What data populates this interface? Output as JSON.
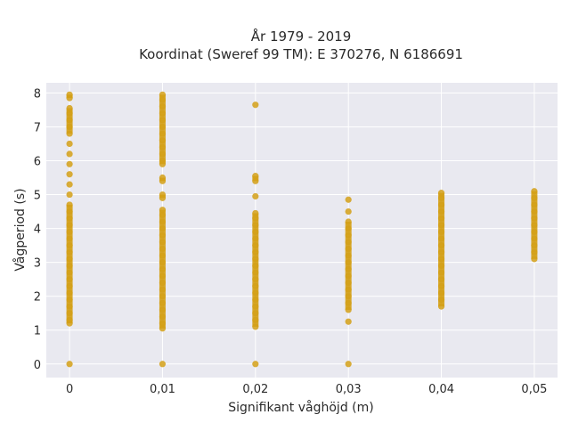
{
  "chart_data": {
    "type": "scatter",
    "title_line1": "År 1979 - 2019",
    "title_line2": "Koordinat (Sweref 99 TM): E 370276, N 6186691",
    "xlabel": "Signifikant våghöjd (m)",
    "ylabel": "Vågperiod (s)",
    "x_ticks": [
      {
        "value": 0,
        "label": "0"
      },
      {
        "value": 0.01,
        "label": "0,01"
      },
      {
        "value": 0.02,
        "label": "0,02"
      },
      {
        "value": 0.03,
        "label": "0,03"
      },
      {
        "value": 0.04,
        "label": "0,04"
      },
      {
        "value": 0.05,
        "label": "0,05"
      }
    ],
    "y_ticks": [
      {
        "value": 0,
        "label": "0"
      },
      {
        "value": 1,
        "label": "1"
      },
      {
        "value": 2,
        "label": "2"
      },
      {
        "value": 3,
        "label": "3"
      },
      {
        "value": 4,
        "label": "4"
      },
      {
        "value": 5,
        "label": "5"
      },
      {
        "value": 6,
        "label": "6"
      },
      {
        "value": 7,
        "label": "7"
      },
      {
        "value": 8,
        "label": "8"
      }
    ],
    "xlim": [
      -0.0025,
      0.0525
    ],
    "ylim": [
      -0.4,
      8.3
    ],
    "grid": true,
    "legend": "none",
    "marker_color": "#D4A017",
    "background_color": "#E9E9F0",
    "series": [
      {
        "points": [
          {
            "x": 0,
            "y": 0
          },
          {
            "x": 0,
            "y": 1.2
          },
          {
            "x": 0,
            "y": 1.3
          },
          {
            "x": 0,
            "y": 1.5
          },
          {
            "x": 0,
            "y": 1.7
          },
          {
            "x": 0,
            "y": 1.9
          },
          {
            "x": 0,
            "y": 2.1
          },
          {
            "x": 0,
            "y": 2.3
          },
          {
            "x": 0,
            "y": 2.5
          },
          {
            "x": 0,
            "y": 2.7
          },
          {
            "x": 0,
            "y": 2.9
          },
          {
            "x": 0,
            "y": 3.1
          },
          {
            "x": 0,
            "y": 3.3
          },
          {
            "x": 0,
            "y": 3.5
          },
          {
            "x": 0,
            "y": 3.7
          },
          {
            "x": 0,
            "y": 3.9
          },
          {
            "x": 0,
            "y": 4.1
          },
          {
            "x": 0,
            "y": 4.3
          },
          {
            "x": 0,
            "y": 4.5
          },
          {
            "x": 0,
            "y": 4.7
          },
          {
            "x": 0,
            "y": 5.0
          },
          {
            "x": 0,
            "y": 5.3
          },
          {
            "x": 0,
            "y": 5.6
          },
          {
            "x": 0,
            "y": 5.9
          },
          {
            "x": 0,
            "y": 6.2
          },
          {
            "x": 0,
            "y": 6.5
          },
          {
            "x": 0,
            "y": 6.8
          },
          {
            "x": 0,
            "y": 7.0
          },
          {
            "x": 0,
            "y": 7.2
          },
          {
            "x": 0,
            "y": 7.4
          },
          {
            "x": 0,
            "y": 7.55
          },
          {
            "x": 0,
            "y": 7.85
          },
          {
            "x": 0,
            "y": 7.95
          },
          {
            "x": 0.01,
            "y": 0
          },
          {
            "x": 0.01,
            "y": 1.05
          },
          {
            "x": 0.01,
            "y": 1.2
          },
          {
            "x": 0.01,
            "y": 1.4
          },
          {
            "x": 0.01,
            "y": 1.6
          },
          {
            "x": 0.01,
            "y": 1.8
          },
          {
            "x": 0.01,
            "y": 2.0
          },
          {
            "x": 0.01,
            "y": 2.2
          },
          {
            "x": 0.01,
            "y": 2.4
          },
          {
            "x": 0.01,
            "y": 2.6
          },
          {
            "x": 0.01,
            "y": 2.8
          },
          {
            "x": 0.01,
            "y": 3.0
          },
          {
            "x": 0.01,
            "y": 3.2
          },
          {
            "x": 0.01,
            "y": 3.4
          },
          {
            "x": 0.01,
            "y": 3.6
          },
          {
            "x": 0.01,
            "y": 3.8
          },
          {
            "x": 0.01,
            "y": 4.0
          },
          {
            "x": 0.01,
            "y": 4.2
          },
          {
            "x": 0.01,
            "y": 4.4
          },
          {
            "x": 0.01,
            "y": 4.55
          },
          {
            "x": 0.01,
            "y": 4.9
          },
          {
            "x": 0.01,
            "y": 5.0
          },
          {
            "x": 0.01,
            "y": 5.4
          },
          {
            "x": 0.01,
            "y": 5.5
          },
          {
            "x": 0.01,
            "y": 5.9
          },
          {
            "x": 0.01,
            "y": 6.0
          },
          {
            "x": 0.01,
            "y": 6.2
          },
          {
            "x": 0.01,
            "y": 6.4
          },
          {
            "x": 0.01,
            "y": 6.6
          },
          {
            "x": 0.01,
            "y": 6.8
          },
          {
            "x": 0.01,
            "y": 7.0
          },
          {
            "x": 0.01,
            "y": 7.2
          },
          {
            "x": 0.01,
            "y": 7.4
          },
          {
            "x": 0.01,
            "y": 7.6
          },
          {
            "x": 0.01,
            "y": 7.8
          },
          {
            "x": 0.01,
            "y": 7.95
          },
          {
            "x": 0.02,
            "y": 0
          },
          {
            "x": 0.02,
            "y": 1.1
          },
          {
            "x": 0.02,
            "y": 1.3
          },
          {
            "x": 0.02,
            "y": 1.5
          },
          {
            "x": 0.02,
            "y": 1.7
          },
          {
            "x": 0.02,
            "y": 1.9
          },
          {
            "x": 0.02,
            "y": 2.1
          },
          {
            "x": 0.02,
            "y": 2.3
          },
          {
            "x": 0.02,
            "y": 2.5
          },
          {
            "x": 0.02,
            "y": 2.7
          },
          {
            "x": 0.02,
            "y": 2.9
          },
          {
            "x": 0.02,
            "y": 3.1
          },
          {
            "x": 0.02,
            "y": 3.3
          },
          {
            "x": 0.02,
            "y": 3.5
          },
          {
            "x": 0.02,
            "y": 3.7
          },
          {
            "x": 0.02,
            "y": 3.9
          },
          {
            "x": 0.02,
            "y": 4.1
          },
          {
            "x": 0.02,
            "y": 4.3
          },
          {
            "x": 0.02,
            "y": 4.45
          },
          {
            "x": 0.02,
            "y": 4.95
          },
          {
            "x": 0.02,
            "y": 5.4
          },
          {
            "x": 0.02,
            "y": 5.55
          },
          {
            "x": 0.02,
            "y": 7.65
          },
          {
            "x": 0.03,
            "y": 0
          },
          {
            "x": 0.03,
            "y": 1.25
          },
          {
            "x": 0.03,
            "y": 1.6
          },
          {
            "x": 0.03,
            "y": 1.8
          },
          {
            "x": 0.03,
            "y": 2.0
          },
          {
            "x": 0.03,
            "y": 2.2
          },
          {
            "x": 0.03,
            "y": 2.4
          },
          {
            "x": 0.03,
            "y": 2.6
          },
          {
            "x": 0.03,
            "y": 2.8
          },
          {
            "x": 0.03,
            "y": 3.0
          },
          {
            "x": 0.03,
            "y": 3.2
          },
          {
            "x": 0.03,
            "y": 3.4
          },
          {
            "x": 0.03,
            "y": 3.6
          },
          {
            "x": 0.03,
            "y": 3.8
          },
          {
            "x": 0.03,
            "y": 4.0
          },
          {
            "x": 0.03,
            "y": 4.2
          },
          {
            "x": 0.03,
            "y": 4.5
          },
          {
            "x": 0.03,
            "y": 4.85
          },
          {
            "x": 0.04,
            "y": 1.7
          },
          {
            "x": 0.04,
            "y": 1.9
          },
          {
            "x": 0.04,
            "y": 2.1
          },
          {
            "x": 0.04,
            "y": 2.3
          },
          {
            "x": 0.04,
            "y": 2.5
          },
          {
            "x": 0.04,
            "y": 2.7
          },
          {
            "x": 0.04,
            "y": 2.9
          },
          {
            "x": 0.04,
            "y": 3.1
          },
          {
            "x": 0.04,
            "y": 3.3
          },
          {
            "x": 0.04,
            "y": 3.5
          },
          {
            "x": 0.04,
            "y": 3.7
          },
          {
            "x": 0.04,
            "y": 3.9
          },
          {
            "x": 0.04,
            "y": 4.1
          },
          {
            "x": 0.04,
            "y": 4.3
          },
          {
            "x": 0.04,
            "y": 4.5
          },
          {
            "x": 0.04,
            "y": 4.7
          },
          {
            "x": 0.04,
            "y": 4.9
          },
          {
            "x": 0.04,
            "y": 5.05
          },
          {
            "x": 0.05,
            "y": 3.1
          },
          {
            "x": 0.05,
            "y": 3.3
          },
          {
            "x": 0.05,
            "y": 3.5
          },
          {
            "x": 0.05,
            "y": 3.7
          },
          {
            "x": 0.05,
            "y": 3.9
          },
          {
            "x": 0.05,
            "y": 4.1
          },
          {
            "x": 0.05,
            "y": 4.3
          },
          {
            "x": 0.05,
            "y": 4.5
          },
          {
            "x": 0.05,
            "y": 4.7
          },
          {
            "x": 0.05,
            "y": 4.9
          },
          {
            "x": 0.05,
            "y": 5.1
          }
        ]
      }
    ]
  }
}
